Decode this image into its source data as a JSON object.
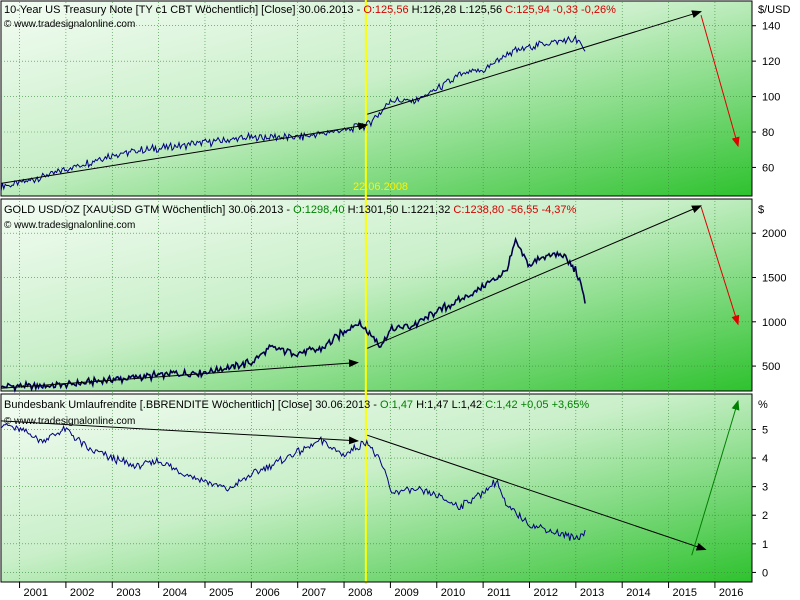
{
  "panels": [
    {
      "header": [
        {
          "text": "10-Year US Treasury Note [TY c1 CBT  Wöchentlich] [Close] 30.06.2013 - ",
          "style": "black"
        },
        {
          "text": "O:125,56 ",
          "style": "red"
        },
        {
          "text": "H:126,28 L:125,56 ",
          "style": "black"
        },
        {
          "text": "C:125,94 -0,33 -0,26%",
          "style": "red"
        }
      ],
      "watermark": "© www.tradesignalonline.com",
      "unit": "$/USD",
      "date_label": "22.06.2008"
    },
    {
      "header": [
        {
          "text": "GOLD USD/OZ [XAUUSD GTM  Wöchentlich] 30.06.2013 - ",
          "style": "black"
        },
        {
          "text": "O:1298,40 ",
          "style": "green"
        },
        {
          "text": "H:1301,50 L:1221,32 ",
          "style": "black"
        },
        {
          "text": "C:1238,80 -56,55 -4,37%",
          "style": "red"
        }
      ],
      "watermark": "© www.tradesignalonline.com",
      "unit": "$"
    },
    {
      "header": [
        {
          "text": "Bundesbank Umlaufrendite [.BBRENDITE  Wöchentlich] [Close] 30.06.2013 - ",
          "style": "black"
        },
        {
          "text": "O:1,47 ",
          "style": "green"
        },
        {
          "text": "H:1,47 L:1,42 ",
          "style": "black"
        },
        {
          "text": "C:1,42 +0,05 +3,65%",
          "style": "green"
        }
      ],
      "watermark": "© www.tradesignalonline.com",
      "unit": "%"
    }
  ],
  "chart_data": [
    {
      "type": "line",
      "title": "10-Year US Treasury Note [TY c1 CBT  Wöchentlich] [Close] 30.06.2013",
      "ylabel": "$/USD",
      "ylim": [
        45,
        150
      ],
      "yticks": [
        60,
        80,
        100,
        120,
        140
      ],
      "grid": true,
      "x": [
        2000.6,
        2001,
        2002,
        2003,
        2004,
        2005,
        2006,
        2007,
        2008,
        2008.5,
        2008.9,
        2009,
        2009.5,
        2010,
        2010.5,
        2011,
        2011.5,
        2012,
        2012.5,
        2013,
        2013.2
      ],
      "series": [
        {
          "values": [
            49,
            51,
            59,
            67,
            71,
            74,
            77,
            77,
            81,
            84,
            94,
            98,
            97,
            104,
            112,
            115,
            124,
            128,
            131,
            132,
            126
          ]
        }
      ],
      "trendlines": [
        {
          "from": [
            2000.6,
            51
          ],
          "to": [
            2008.5,
            84
          ],
          "color": "#000000"
        },
        {
          "from": [
            2008.5,
            90
          ],
          "to": [
            2015.7,
            148
          ],
          "color": "#000000"
        },
        {
          "from": [
            2015.7,
            146
          ],
          "to": [
            2016.5,
            72
          ],
          "color": "#e00000"
        }
      ],
      "vline": {
        "x": 2008.47,
        "label": "22.06.2008"
      }
    },
    {
      "type": "line",
      "title": "GOLD USD/OZ [XAUUSD GTM  Wöchentlich] 30.06.2013",
      "ylabel": "$",
      "ylim": [
        230,
        2330
      ],
      "yticks": [
        500,
        1000,
        1500,
        2000
      ],
      "grid": true,
      "x": [
        2000.6,
        2001,
        2002,
        2003,
        2004,
        2005,
        2006,
        2006.4,
        2007,
        2007.5,
        2008,
        2008.3,
        2008.8,
        2009,
        2009.5,
        2010,
        2010.5,
        2011,
        2011.5,
        2011.7,
        2012,
        2012.3,
        2012.7,
        2013,
        2013.2
      ],
      "series": [
        {
          "values": [
            270,
            265,
            290,
            345,
            400,
            430,
            540,
            710,
            640,
            690,
            890,
            990,
            740,
            910,
            960,
            1120,
            1240,
            1400,
            1580,
            1900,
            1640,
            1740,
            1760,
            1580,
            1240
          ]
        }
      ],
      "trendlines": [
        {
          "from": [
            2000.6,
            250
          ],
          "to": [
            2008.3,
            540
          ],
          "color": "#000000"
        },
        {
          "from": [
            2008.5,
            700
          ],
          "to": [
            2015.7,
            2310
          ],
          "color": "#000000"
        },
        {
          "from": [
            2015.7,
            2300
          ],
          "to": [
            2016.5,
            970
          ],
          "color": "#e00000"
        }
      ],
      "vline": {
        "x": 2008.47
      }
    },
    {
      "type": "line",
      "title": "Bundesbank Umlaufrendite [.BBRENDITE  Wöchentlich] [Close] 30.06.2013",
      "ylabel": "%",
      "ylim": [
        -0.3,
        6.1
      ],
      "yticks": [
        0,
        1,
        2,
        3,
        4,
        5
      ],
      "grid": true,
      "x": [
        2000.6,
        2001,
        2001.5,
        2002,
        2002.5,
        2003,
        2003.5,
        2004,
        2004.5,
        2005,
        2005.5,
        2006,
        2006.5,
        2007,
        2007.5,
        2008,
        2008.5,
        2008.9,
        2009,
        2009.5,
        2010,
        2010.5,
        2011,
        2011.3,
        2011.5,
        2012,
        2012.5,
        2013,
        2013.2
      ],
      "series": [
        {
          "values": [
            5.2,
            5.0,
            4.6,
            5.0,
            4.3,
            4.0,
            3.7,
            3.9,
            3.5,
            3.2,
            2.9,
            3.4,
            3.8,
            4.2,
            4.6,
            4.1,
            4.6,
            3.5,
            2.8,
            2.9,
            2.7,
            2.3,
            2.8,
            3.2,
            2.3,
            1.7,
            1.4,
            1.2,
            1.4
          ]
        }
      ],
      "trendlines": [
        {
          "from": [
            2000.6,
            5.3
          ],
          "to": [
            2008.3,
            4.6
          ],
          "color": "#000000"
        },
        {
          "from": [
            2008.5,
            4.8
          ],
          "to": [
            2015.8,
            0.8
          ],
          "color": "#000000"
        },
        {
          "from": [
            2015.5,
            0.6
          ],
          "to": [
            2016.5,
            6.0
          ],
          "color": "#008000"
        }
      ],
      "vline": {
        "x": 2008.47
      }
    }
  ],
  "x_axis": {
    "labels": [
      "2001",
      "2002",
      "2003",
      "2004",
      "2005",
      "2006",
      "2007",
      "2008",
      "2009",
      "2010",
      "2011",
      "2012",
      "2013",
      "2014",
      "2015",
      "2016"
    ],
    "values": [
      2001,
      2002,
      2003,
      2004,
      2005,
      2006,
      2007,
      2008,
      2009,
      2010,
      2011,
      2012,
      2013,
      2014,
      2015,
      2016
    ],
    "range": [
      2000.6,
      2016.8
    ]
  },
  "colors": {
    "price_line": "#00007f",
    "vline": "#ffff00",
    "grid": "#3a8a3a",
    "bg_light": "#eefaee",
    "bg_dark": "#33cc33"
  }
}
